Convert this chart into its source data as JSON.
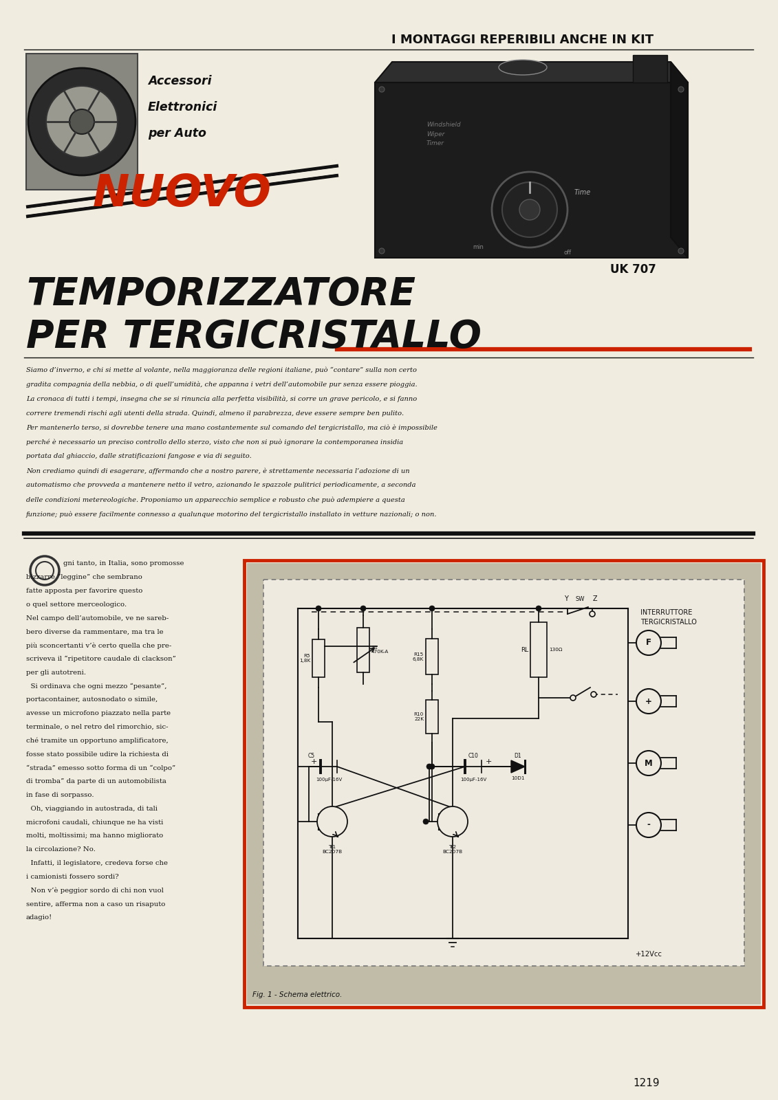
{
  "bg_color": "#f0ece0",
  "page_width": 11.31,
  "page_height": 16.0,
  "top_header": "I MONTAGGI REPERIBILI ANCHE IN KIT",
  "logo_text_lines": [
    "Accessori",
    "Elettronici",
    "per Auto"
  ],
  "nuovo_text": "NUOVO",
  "title_line1": "TEMPORIZZATORE",
  "title_line2": "PER TERGICRISTALLO",
  "uk707_label": "UK 707",
  "figure_caption": "Fig. 1 - Schema elettrico.",
  "interruttore_label": "INTERRUTTORE\nTERGICRISTALLO",
  "red_border_color": "#cc2200",
  "schematic_bg": "#c0bca8",
  "page_number": "1219",
  "intro_lines": [
    "Siamo d’inverno, e chi si mette al volante, nella maggioranza delle regioni italiane, può “contare” sulla non certo",
    "gradita compagnia della nebbia, o di quell’umidità, che appanna i vetri dell’automobile pur senza essere pioggia.",
    "La cronaca di tutti i tempi, insegna che se si rinuncia alla perfetta visibilità, si corre un grave pericolo, e si fanno",
    "correre tremendi rischi agli utenti della strada. Quindi, almeno il parabrezza, deve essere sempre ben pulito.",
    "Per mantenerlo terso, si dovrebbe tenere una mano costantemente sul comando del tergicristallo, ma ciò è impossibile",
    "perché è necessario un preciso controllo dello sterzo, visto che non si può ignorare la contemporanea insidia",
    "portata dal ghiaccio, dalle stratificazioni fangose e via di seguito.",
    "Non crediamo quindi di esagerare, affermando che a nostro parere, è strettamente necessaria l’adozione di un",
    "automatismo che provveda a mantenere netto il vetro, azionando le spazzole pulitrici periodicamente, a seconda",
    "delle condizioni metereologiche. Proponiamo un apparecchio semplice e robusto che può adempiere a questa",
    "funzione; può essere facilmente connesso a qualunque motorino del tergicristallo installato in vetture nazionali; o non."
  ],
  "col1_lines": [
    "gni tanto, in Italia, sono promosse",
    "bizzarre “leggine” che sembrano",
    "fatte apposta per favorire questo",
    "o quel settore merceologico.",
    "Nel campo dell’automobile, ve ne sareb-",
    "bero diverse da rammentare, ma tra le",
    "più sconcertanti v’è certo quella che pre-",
    "scriveva il “ripetitore caudale di clackson”",
    "per gli autotreni.",
    "  Si ordinava che ogni mezzo “pesante”,",
    "portacontainer, autosnodato o simile,",
    "avesse un microfono piazzato nella parte",
    "terminale, o nel retro del rimorchio, sic-",
    "ché tramite un opportuno amplificatore,",
    "fosse stato possibile udire la richiesta di",
    "“strada” emesso sotto forma di un “colpo”",
    "di tromba” da parte di un automobilista",
    "in fase di sorpasso.",
    "  Oh, viaggiando in autostrada, di tali",
    "microfoni caudali, chiunque ne ha visti",
    "molti, moltissimi; ma hanno migliorato",
    "la circolazione? No.",
    "  Infatti, il legislatore, credeva forse che",
    "i camionisti fossero sordi?",
    "  Non v’è peggior sordo di chi non vuol",
    "sentire, afferma non a caso un risaputo",
    "adagio!"
  ]
}
